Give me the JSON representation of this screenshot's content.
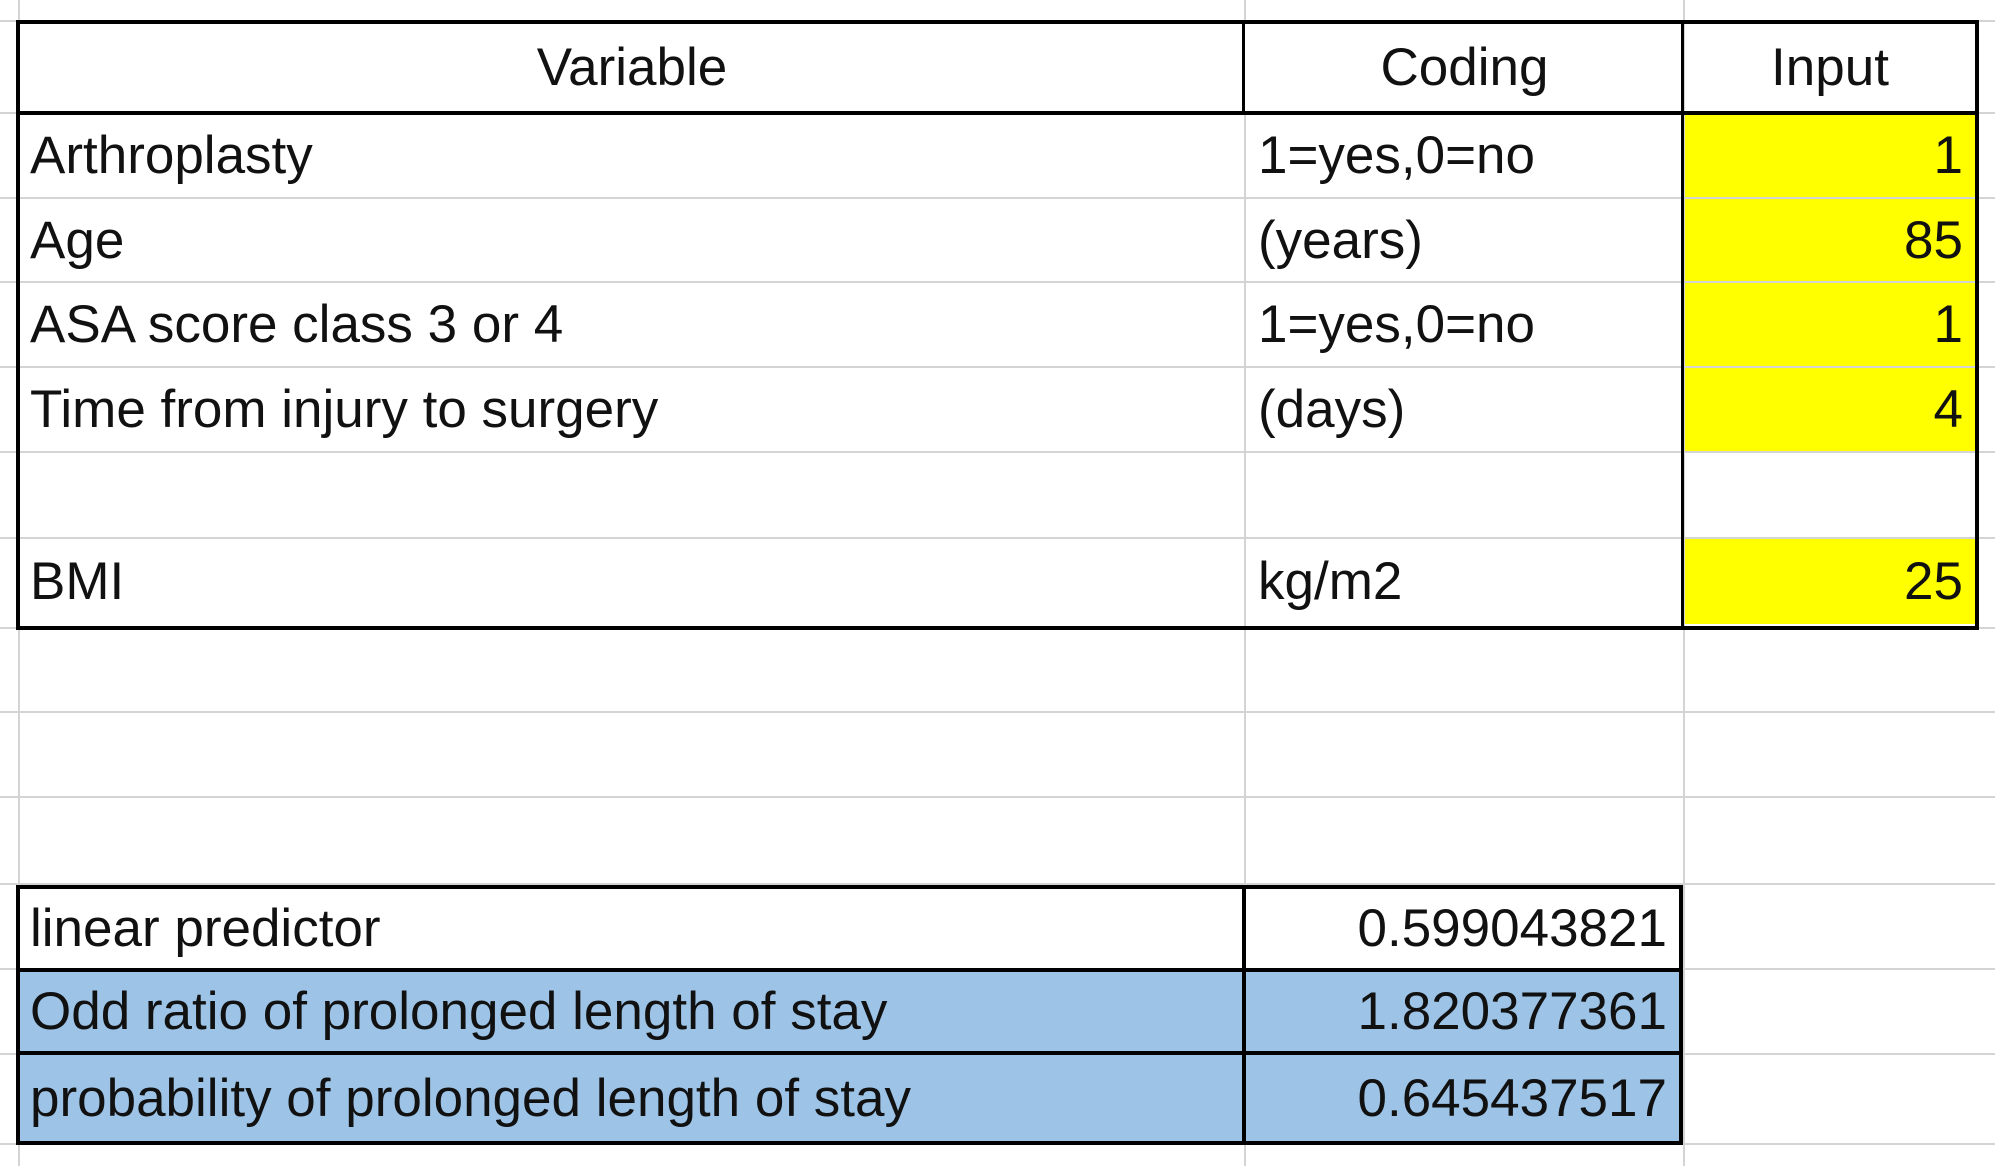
{
  "variables_table": {
    "headers": {
      "variable": "Variable",
      "coding": "Coding",
      "input": "Input"
    },
    "rows": [
      {
        "variable": "Arthroplasty",
        "coding": "1=yes,0=no",
        "input": "1"
      },
      {
        "variable": "Age",
        "coding": "(years)",
        "input": "85"
      },
      {
        "variable": "ASA score class 3 or 4",
        "coding": "1=yes,0=no",
        "input": "1"
      },
      {
        "variable": "Time from injury to surgery",
        "coding": "(days)",
        "input": "4"
      },
      {
        "variable": "",
        "coding": "",
        "input": ""
      },
      {
        "variable": "BMI",
        "coding": "kg/m2",
        "input": "25"
      }
    ]
  },
  "results_table": {
    "rows": [
      {
        "label": "linear predictor",
        "value": "0.599043821"
      },
      {
        "label": "Odd ratio of prolonged length of stay",
        "value": "1.820377361"
      },
      {
        "label": "probability of prolonged length of stay",
        "value": "0.645437517"
      }
    ]
  },
  "colors": {
    "input_fill": "#ffff00",
    "result_fill": "#9dc3e6",
    "gridline": "#d4d4d4",
    "border": "#000000"
  }
}
